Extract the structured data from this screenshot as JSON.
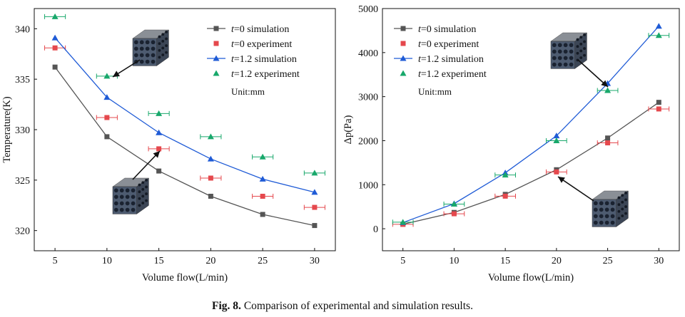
{
  "caption": {
    "label": "Fig. 8.",
    "text": "Comparison of experimental and simulation results."
  },
  "colors": {
    "sim_t0": "#555555",
    "exp_t0": "#e5484d",
    "sim_t12": "#1f5bd6",
    "exp_t12": "#18a86b"
  },
  "chart_data": [
    {
      "type": "line",
      "xlabel": "Volume flow(L/min)",
      "ylabel": "Temperature(K)",
      "xlim": [
        3,
        32
      ],
      "ylim": [
        318,
        342
      ],
      "xticks": [
        5,
        10,
        15,
        20,
        25,
        30
      ],
      "yticks": [
        320,
        325,
        330,
        335,
        340
      ],
      "grid": false,
      "legend_position": "top-right",
      "unit_note": "Unit:mm",
      "series": [
        {
          "name": "t=0 simulation",
          "kind": "line",
          "marker": "square",
          "color": "#555555",
          "x": [
            5,
            10,
            15,
            20,
            25,
            30
          ],
          "y": [
            336.2,
            329.3,
            325.9,
            323.4,
            321.6,
            320.5
          ]
        },
        {
          "name": "t=0 experiment",
          "kind": "scatter",
          "marker": "square",
          "color": "#e5484d",
          "x": [
            5,
            10,
            15,
            20,
            25,
            30
          ],
          "y": [
            338.1,
            331.2,
            328.1,
            325.2,
            323.4,
            322.3
          ],
          "xerr": 1
        },
        {
          "name": "t=1.2 simulation",
          "kind": "line",
          "marker": "triangle",
          "color": "#1f5bd6",
          "x": [
            5,
            10,
            15,
            20,
            25,
            30
          ],
          "y": [
            339.1,
            333.2,
            329.7,
            327.1,
            325.1,
            323.8
          ]
        },
        {
          "name": "t=1.2 experiment",
          "kind": "scatter",
          "marker": "triangle",
          "color": "#18a86b",
          "x": [
            5,
            10,
            15,
            20,
            25,
            30
          ],
          "y": [
            341.2,
            335.3,
            331.6,
            329.3,
            327.3,
            325.7
          ],
          "xerr": 1
        }
      ]
    },
    {
      "type": "line",
      "xlabel": "Volume flow(L/min)",
      "ylabel": "Δp(Pa)",
      "xlim": [
        3,
        32
      ],
      "ylim": [
        -500,
        5000
      ],
      "xticks": [
        5,
        10,
        15,
        20,
        25,
        30
      ],
      "yticks": [
        0,
        1000,
        2000,
        3000,
        4000,
        5000
      ],
      "grid": false,
      "legend_position": "top-left",
      "unit_note": "Unit:mm",
      "series": [
        {
          "name": "t=0 simulation",
          "kind": "line",
          "marker": "square",
          "color": "#555555",
          "x": [
            5,
            10,
            15,
            20,
            25,
            30
          ],
          "y": [
            100,
            370,
            780,
            1340,
            2060,
            2870
          ]
        },
        {
          "name": "t=0 experiment",
          "kind": "scatter",
          "marker": "square",
          "color": "#e5484d",
          "x": [
            5,
            10,
            15,
            20,
            25,
            30
          ],
          "y": [
            100,
            340,
            740,
            1290,
            1950,
            2720
          ],
          "xerr": 1
        },
        {
          "name": "t=1.2 simulation",
          "kind": "line",
          "marker": "triangle",
          "color": "#1f5bd6",
          "x": [
            5,
            10,
            15,
            20,
            25,
            30
          ],
          "y": [
            140,
            570,
            1270,
            2110,
            3300,
            4600
          ]
        },
        {
          "name": "t=1.2 experiment",
          "kind": "scatter",
          "marker": "triangle",
          "color": "#18a86b",
          "x": [
            5,
            10,
            15,
            20,
            25,
            30
          ],
          "y": [
            150,
            560,
            1220,
            2000,
            3140,
            4390
          ],
          "xerr": 1
        }
      ]
    }
  ]
}
